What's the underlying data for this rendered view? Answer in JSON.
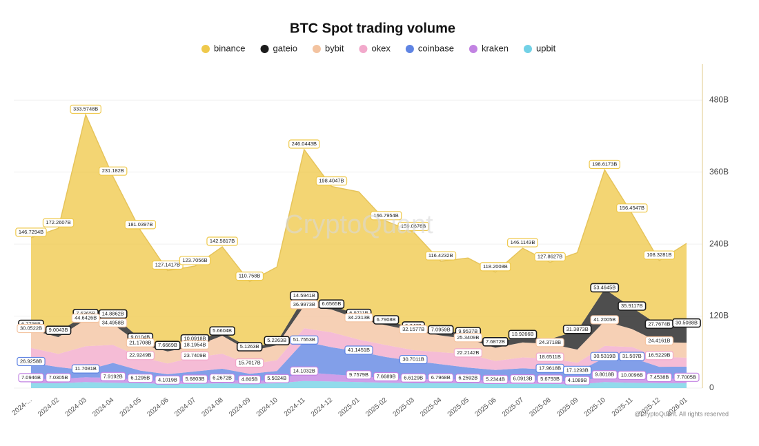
{
  "chart_data": {
    "type": "stacked_area",
    "title": "BTC Spot trading volume",
    "watermark": "CryptoQuant",
    "footer": "@CryptoQuant. All rights reserved",
    "categories": [
      "2024-...",
      "2024-02",
      "2024-03",
      "2024-04",
      "2024-05",
      "2024-06",
      "2024-07",
      "2024-08",
      "2024-09",
      "2024-10",
      "2024-11",
      "2024-12",
      "2025-01",
      "2025-02",
      "2025-03",
      "2025-04",
      "2025-05",
      "2025-06",
      "2025-07",
      "2025-08",
      "2025-09",
      "2025-10",
      "2025-11",
      "2025-12",
      "2026-01"
    ],
    "ylim": [
      0,
      540
    ],
    "yticks": [
      0,
      {
        "value": 120,
        "label": "120B"
      },
      {
        "value": 240,
        "label": "240B"
      },
      {
        "value": 360,
        "label": "360B"
      },
      {
        "value": 480,
        "label": "480B"
      }
    ],
    "grid": true,
    "legend": "top",
    "series": [
      {
        "name": "binance",
        "color": "#efc94c",
        "values": [
          146.7294,
          172.2607,
          333.5748,
          231.182,
          181.0397,
          127.1417,
          123.7056,
          142.5817,
          110.758,
          125,
          246.0443,
          198.4047,
          205,
          166.7954,
          159.0676,
          116.4232,
          125,
          118.2008,
          146.1143,
          127.8627,
          130,
          198.6173,
          156.4547,
          108.3281,
          135
        ],
        "value_labels": [
          "146.7294B",
          "172.2607B",
          "333.5748B",
          "231.182B",
          "181.0397B",
          "127.1417B",
          "123.7056B",
          "142.5817B",
          "110.758B",
          null,
          "246.0443B",
          "198.4047B",
          null,
          "166.7954B",
          "159.0676B",
          "116.4232B",
          null,
          "118.2008B",
          "146.1143B",
          "127.8627B",
          null,
          "198.6173B",
          "156.4547B",
          "108.3281B",
          null
        ]
      },
      {
        "name": "gateio",
        "color": "#1c1c1c",
        "values": [
          6.7795,
          9.0043,
          7.6365,
          14.8862,
          9.0104,
          7.6669,
          10.0918,
          5.6604,
          5.1263,
          5.2263,
          14.5941,
          6.6565,
          6.9711,
          6.7908,
          5.747,
          7.0959,
          9.9537,
          7.6872,
          10.9266,
          8,
          31.3873,
          53.4645,
          35.9117,
          27.7674,
          30.5088
        ],
        "value_labels": [
          "6.7795B",
          "9.0043B",
          "7.6365B",
          "14.8862B",
          "9.0104B",
          "7.6669B",
          "10.0918B",
          "5.6604B",
          "5.1263B",
          "5.2263B",
          "14.5941B",
          "6.6565B",
          "6.9711B",
          "6.7908B",
          "5.747B",
          "7.0959B",
          "9.9537B",
          "7.6872B",
          "10.9266B",
          null,
          "31.3873B",
          "53.4645B",
          "35.9117B",
          "27.7674B",
          "30.5088B"
        ]
      },
      {
        "name": "bybit",
        "color": "#f3c3a0",
        "values": [
          30.0522,
          28,
          44.6426,
          34.4958,
          21.1708,
          20,
          18.1954,
          30,
          22,
          25,
          36.9973,
          38,
          34.2313,
          33,
          32.1577,
          28,
          25.3409,
          22,
          25,
          24.3718,
          22,
          41.2005,
          30,
          24.4161,
          25
        ],
        "value_labels": [
          "30.0522B",
          null,
          "44.6426B",
          "34.4958B",
          "21.1708B",
          null,
          "18.1954B",
          null,
          null,
          null,
          "36.9973B",
          null,
          "34.2313B",
          null,
          "32.1577B",
          null,
          "25.3409B",
          null,
          null,
          "24.3718B",
          null,
          "41.2005B",
          null,
          "24.4161B",
          null
        ]
      },
      {
        "name": "okex",
        "color": "#f2a9cb",
        "values": [
          25,
          22,
          40,
          30,
          22.9249,
          18,
          23.7409,
          25,
          15.7017,
          18,
          22,
          25,
          20,
          20,
          18,
          20,
          22.2142,
          15,
          18,
          18.6511,
          15,
          20,
          18,
          16.5229,
          15
        ],
        "value_labels": [
          null,
          null,
          null,
          null,
          "22.9249B",
          null,
          "23.7409B",
          null,
          "15.7017B",
          null,
          null,
          null,
          null,
          null,
          null,
          null,
          "22.2142B",
          null,
          null,
          "18.6511B",
          null,
          null,
          null,
          "16.5229B",
          null
        ]
      },
      {
        "name": "coinbase",
        "color": "#5f84e3",
        "values": [
          26.9258,
          20,
          11.7081,
          25,
          15,
          12,
          15,
          18,
          12,
          15,
          51.7553,
          45,
          41.1451,
          35,
          30.7011,
          25,
          20,
          18,
          20,
          17.9618,
          17.1293,
          30.5319,
          31.507,
          20,
          20
        ],
        "value_labels": [
          "26.9258B",
          null,
          "11.7081B",
          null,
          null,
          null,
          null,
          null,
          null,
          null,
          "51.7553B",
          null,
          "41.1451B",
          null,
          "30.7011B",
          null,
          null,
          null,
          null,
          "17.9618B",
          "17.1293B",
          "30.5319B",
          "31.507B",
          null,
          null
        ]
      },
      {
        "name": "kraken",
        "color": "#c283e2",
        "values": [
          7.0946,
          7.0305,
          8,
          7.9192,
          6.1295,
          4.1019,
          5.6803,
          6.2672,
          4.805,
          5.5024,
          14.1032,
          12,
          9.7579,
          7.6689,
          6.6129,
          6.7968,
          6.2592,
          5.2344,
          6.0913,
          5.6793,
          4.1089,
          9.8018,
          10.0096,
          7.4538,
          7.7005
        ],
        "value_labels": [
          "7.0946B",
          "7.0305B",
          null,
          "7.9192B",
          "6.1295B",
          "4.1019B",
          "5.6803B",
          "6.2672B",
          "4.805B",
          "5.5024B",
          "14.1032B",
          null,
          "9.7579B",
          "7.6689B",
          "6.6129B",
          "6.7968B",
          "6.2592B",
          "5.2344B",
          "6.0913B",
          "5.6793B",
          "4.1089B",
          "9.8018B",
          "10.0096B",
          "7.4538B",
          "7.7005B"
        ]
      },
      {
        "name": "upbit",
        "color": "#72d1e6",
        "values": [
          8,
          8,
          10,
          9,
          8,
          7,
          7,
          8,
          7,
          8,
          12,
          11,
          10,
          9,
          8,
          8,
          8,
          7,
          7,
          7,
          6,
          10,
          9,
          8,
          8
        ],
        "value_labels": [
          null,
          null,
          null,
          null,
          null,
          null,
          null,
          null,
          null,
          null,
          null,
          null,
          null,
          null,
          null,
          null,
          null,
          null,
          null,
          null,
          null,
          null,
          null,
          null,
          null
        ]
      }
    ]
  }
}
